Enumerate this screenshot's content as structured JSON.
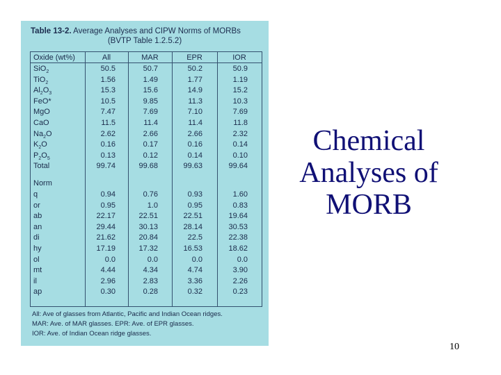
{
  "table": {
    "title_prefix": "Table 13-2.",
    "title_rest": " Average Analyses and CIPW Norms of MORBs",
    "subtitle": "(BVTP Table 1.2.5.2)",
    "headers": [
      "Oxide (wt%)",
      "All",
      "MAR",
      "EPR",
      "IOR"
    ],
    "oxide_rows": [
      {
        "label": "SiO",
        "sub": "2",
        "tail": "",
        "values": [
          "50.5",
          "50.7",
          "50.2",
          "50.9"
        ]
      },
      {
        "label": "TiO",
        "sub": "2",
        "tail": "",
        "values": [
          "1.56",
          "1.49",
          "1.77",
          "1.19"
        ]
      },
      {
        "label": "Al",
        "sub": "2",
        "tail": "O",
        "sub2": "3",
        "values": [
          "15.3",
          "15.6",
          "14.9",
          "15.2"
        ]
      },
      {
        "label": "FeO*",
        "sub": "",
        "tail": "",
        "values": [
          "10.5",
          "9.85",
          "11.3",
          "10.3"
        ]
      },
      {
        "label": "MgO",
        "sub": "",
        "tail": "",
        "values": [
          "7.47",
          "7.69",
          "7.10",
          "7.69"
        ]
      },
      {
        "label": "CaO",
        "sub": "",
        "tail": "",
        "values": [
          "11.5",
          "11.4",
          "11.4",
          "11.8"
        ]
      },
      {
        "label": "Na",
        "sub": "2",
        "tail": "O",
        "values": [
          "2.62",
          "2.66",
          "2.66",
          "2.32"
        ]
      },
      {
        "label": "K",
        "sub": "2",
        "tail": "O",
        "values": [
          "0.16",
          "0.17",
          "0.16",
          "0.14"
        ]
      },
      {
        "label": "P",
        "sub": "2",
        "tail": "O",
        "sub2": "5",
        "values": [
          "0.13",
          "0.12",
          "0.14",
          "0.10"
        ]
      },
      {
        "label": "Total",
        "sub": "",
        "tail": "",
        "values": [
          "99.74",
          "99.68",
          "99.63",
          "99.64"
        ]
      }
    ],
    "norm_label": "Norm",
    "norm_rows": [
      {
        "label": "q",
        "values": [
          "0.94",
          "0.76",
          "0.93",
          "1.60"
        ]
      },
      {
        "label": "or",
        "values": [
          "0.95",
          "1.0",
          "0.95",
          "0.83"
        ]
      },
      {
        "label": "ab",
        "values": [
          "22.17",
          "22.51",
          "22.51",
          "19.64"
        ]
      },
      {
        "label": "an",
        "values": [
          "29.44",
          "30.13",
          "28.14",
          "30.53"
        ]
      },
      {
        "label": "di",
        "values": [
          "21.62",
          "20.84",
          "22.5",
          "22.38"
        ]
      },
      {
        "label": "hy",
        "values": [
          "17.19",
          "17.32",
          "16.53",
          "18.62"
        ]
      },
      {
        "label": "ol",
        "values": [
          "0.0",
          "0.0",
          "0.0",
          "0.0"
        ]
      },
      {
        "label": "mt",
        "values": [
          "4.44",
          "4.34",
          "4.74",
          "3.90"
        ]
      },
      {
        "label": "il",
        "values": [
          "2.96",
          "2.83",
          "3.36",
          "2.26"
        ]
      },
      {
        "label": "ap",
        "values": [
          "0.30",
          "0.28",
          "0.32",
          "0.23"
        ]
      }
    ],
    "footnotes": [
      "All:  Ave of glasses from Atlantic, Pacific and Indian Ocean ridges.",
      "MAR:  Ave. of MAR glasses.  EPR:  Ave. of EPR glasses.",
      "IOR:  Ave. of Indian Ocean ridge glasses."
    ]
  },
  "slide": {
    "title_lines": [
      "Chemical",
      "Analyses of",
      "MORB"
    ],
    "page_number": "10"
  },
  "colors": {
    "panel_bg": "#a6dde3",
    "title_text": "#101075",
    "table_text": "#1a2a4a"
  }
}
